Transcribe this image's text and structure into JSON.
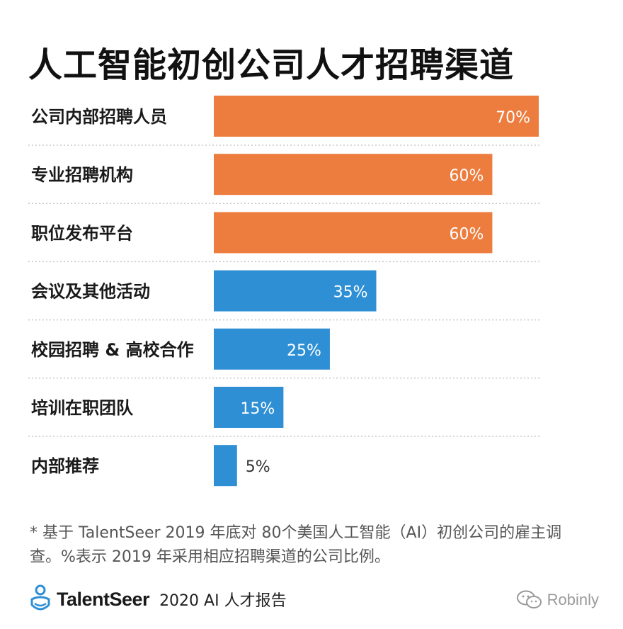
{
  "title": "人工智能初创公司人才招聘渠道",
  "chart_data": {
    "type": "bar",
    "orientation": "horizontal",
    "categories": [
      "公司内部招聘人员",
      "专业招聘机构",
      "职位发布平台",
      "会议及其他活动",
      "校园招聘 & 高校合作",
      "培训在职团队",
      "内部推荐"
    ],
    "values": [
      70,
      60,
      60,
      35,
      25,
      15,
      5
    ],
    "value_labels": [
      "70%",
      "60%",
      "60%",
      "35%",
      "25%",
      "15%",
      "5%"
    ],
    "bar_colors": [
      "#ed7d3e",
      "#ed7d3e",
      "#ed7d3e",
      "#2f8fd5",
      "#2f8fd5",
      "#2f8fd5",
      "#2f8fd5"
    ],
    "xlim": [
      0,
      70
    ],
    "grid": false,
    "separators": "dotted"
  },
  "footnote": "* 基于 TalentSeer 2019 年底对 80个美国人工智能（AI）初创公司的雇主调查。%表示 2019 年采用相应招聘渠道的公司比例。",
  "footer": {
    "brand": "TalentSeer",
    "report": "2020 AI 人才报告",
    "watermark": "Robinly",
    "brand_logo_icon": "talentseer-logo-icon",
    "watermark_icon": "wechat-icon"
  }
}
